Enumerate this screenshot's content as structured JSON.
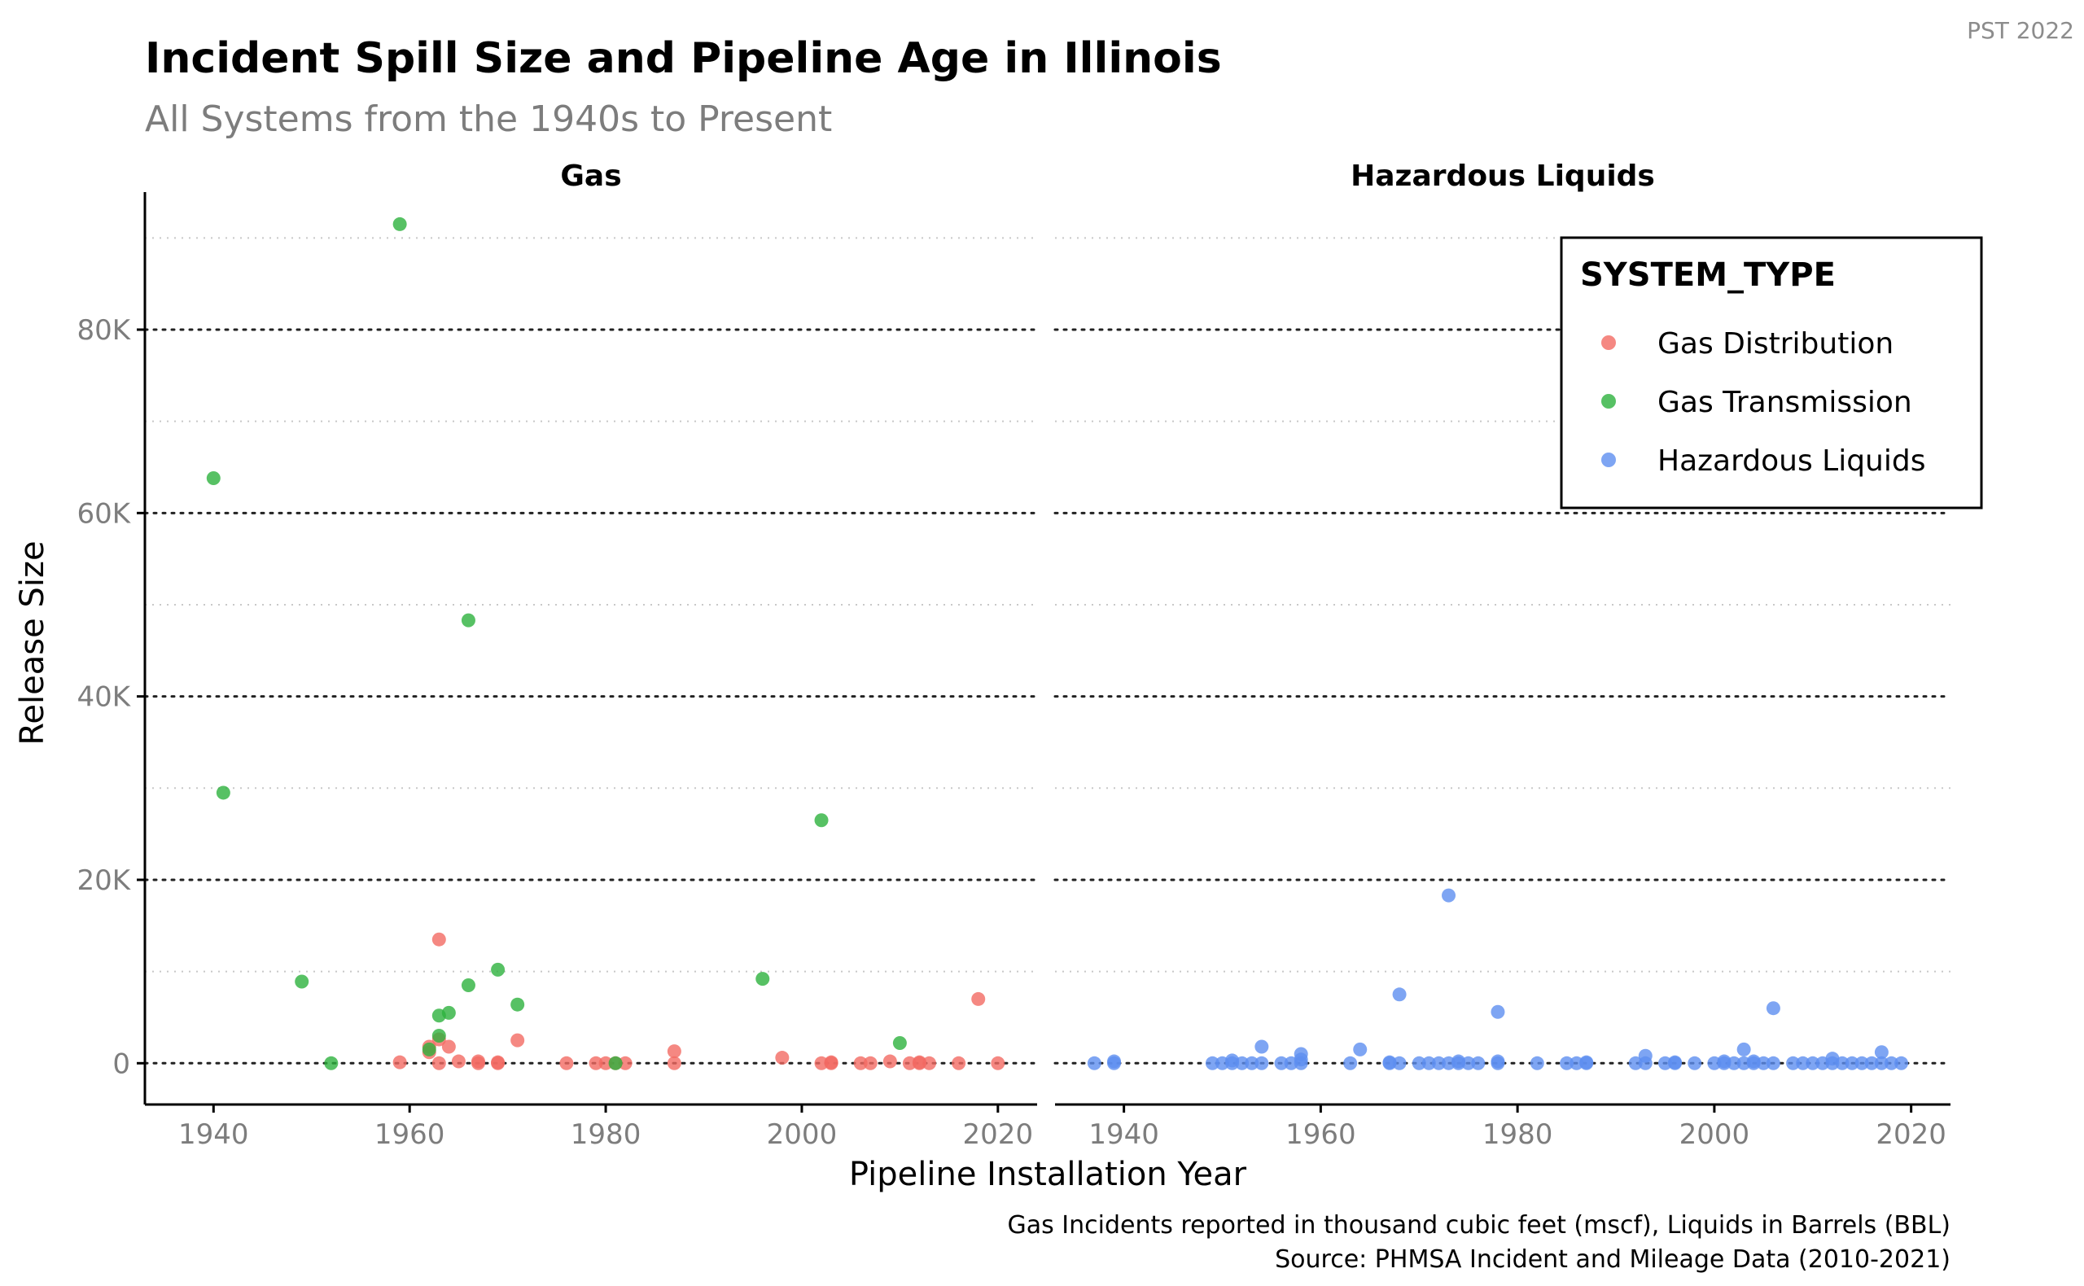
{
  "title": "Incident Spill Size and Pipeline Age in Illinois",
  "subtitle": "All Systems from the 1940s to Present",
  "tag": "PST 2022",
  "caption": [
    "Gas Incidents reported in thousand cubic feet (mscf), Liquids in Barrels (BBL)",
    "Source: PHMSA Incident and Mileage Data (2010-2021)"
  ],
  "colors": {
    "Gas Distribution": "#F26A63",
    "Gas Transmission": "#2DB23D",
    "Hazardous Liquids": "#5E8EF0"
  },
  "chart_data": {
    "type": "scatter",
    "title": "Incident Spill Size and Pipeline Age in Illinois",
    "subtitle": "All Systems from the 1940s to Present",
    "xlabel": "Pipeline Installation Year",
    "ylabel": "Release Size",
    "xlim": [
      1933,
      2024
    ],
    "ylim": [
      -4500,
      95000
    ],
    "x_ticks": [
      1940,
      1960,
      1980,
      2000,
      2020
    ],
    "x_tick_labels": [
      "1940",
      "1960",
      "1980",
      "2000",
      "2020"
    ],
    "y_ticks": [
      0,
      20000,
      40000,
      60000,
      80000
    ],
    "y_tick_labels": [
      "0",
      "20K",
      "40K",
      "60K",
      "80K"
    ],
    "grid": "horizontal dotted",
    "legend": {
      "title": "SYSTEM_TYPE",
      "placement": "top-right",
      "entries": [
        "Gas Distribution",
        "Gas Transmission",
        "Hazardous Liquids"
      ]
    },
    "facets": [
      {
        "label": "Gas",
        "series": [
          {
            "name": "Gas Distribution",
            "points": [
              [
                1959,
                100
              ],
              [
                1962,
                1800
              ],
              [
                1962,
                1200
              ],
              [
                1963,
                13500
              ],
              [
                1963,
                2600
              ],
              [
                1963,
                0
              ],
              [
                1964,
                1800
              ],
              [
                1965,
                200
              ],
              [
                1967,
                0
              ],
              [
                1967,
                200
              ],
              [
                1969,
                0
              ],
              [
                1969,
                100
              ],
              [
                1971,
                2500
              ],
              [
                1976,
                0
              ],
              [
                1979,
                0
              ],
              [
                1980,
                0
              ],
              [
                1981,
                0
              ],
              [
                1982,
                0
              ],
              [
                1987,
                0
              ],
              [
                1987,
                1300
              ],
              [
                1998,
                600
              ],
              [
                2002,
                0
              ],
              [
                2003,
                0
              ],
              [
                2003,
                100
              ],
              [
                2006,
                0
              ],
              [
                2007,
                0
              ],
              [
                2009,
                200
              ],
              [
                2011,
                0
              ],
              [
                2012,
                0
              ],
              [
                2012,
                100
              ],
              [
                2013,
                0
              ],
              [
                2016,
                0
              ],
              [
                2018,
                7000
              ],
              [
                2020,
                0
              ]
            ]
          },
          {
            "name": "Gas Transmission",
            "points": [
              [
                1940,
                63800
              ],
              [
                1941,
                29500
              ],
              [
                1949,
                8900
              ],
              [
                1952,
                0
              ],
              [
                1959,
                91500
              ],
              [
                1962,
                1500
              ],
              [
                1963,
                5200
              ],
              [
                1963,
                3000
              ],
              [
                1964,
                5500
              ],
              [
                1966,
                8500
              ],
              [
                1966,
                48300
              ],
              [
                1969,
                10200
              ],
              [
                1971,
                6400
              ],
              [
                1981,
                0
              ],
              [
                1996,
                9200
              ],
              [
                2002,
                26500
              ],
              [
                2010,
                2200
              ]
            ]
          }
        ]
      },
      {
        "label": "Hazardous Liquids",
        "series": [
          {
            "name": "Hazardous Liquids",
            "points": [
              [
                1937,
                0
              ],
              [
                1939,
                0
              ],
              [
                1939,
                200
              ],
              [
                1949,
                0
              ],
              [
                1950,
                0
              ],
              [
                1951,
                0
              ],
              [
                1951,
                300
              ],
              [
                1952,
                0
              ],
              [
                1953,
                0
              ],
              [
                1954,
                0
              ],
              [
                1954,
                1800
              ],
              [
                1956,
                0
              ],
              [
                1957,
                0
              ],
              [
                1958,
                0
              ],
              [
                1958,
                400
              ],
              [
                1958,
                1000
              ],
              [
                1963,
                0
              ],
              [
                1964,
                1500
              ],
              [
                1967,
                0
              ],
              [
                1967,
                100
              ],
              [
                1968,
                0
              ],
              [
                1968,
                7500
              ],
              [
                1970,
                0
              ],
              [
                1971,
                0
              ],
              [
                1972,
                0
              ],
              [
                1973,
                0
              ],
              [
                1973,
                18300
              ],
              [
                1974,
                0
              ],
              [
                1974,
                200
              ],
              [
                1975,
                0
              ],
              [
                1976,
                0
              ],
              [
                1978,
                0
              ],
              [
                1978,
                200
              ],
              [
                1978,
                5600
              ],
              [
                1982,
                0
              ],
              [
                1985,
                0
              ],
              [
                1986,
                0
              ],
              [
                1987,
                0
              ],
              [
                1987,
                100
              ],
              [
                1992,
                0
              ],
              [
                1993,
                0
              ],
              [
                1993,
                800
              ],
              [
                1995,
                0
              ],
              [
                1996,
                0
              ],
              [
                1996,
                100
              ],
              [
                1998,
                0
              ],
              [
                2000,
                0
              ],
              [
                2001,
                0
              ],
              [
                2001,
                200
              ],
              [
                2002,
                0
              ],
              [
                2003,
                0
              ],
              [
                2003,
                1500
              ],
              [
                2004,
                0
              ],
              [
                2004,
                200
              ],
              [
                2005,
                0
              ],
              [
                2006,
                0
              ],
              [
                2006,
                6000
              ],
              [
                2008,
                0
              ],
              [
                2009,
                0
              ],
              [
                2010,
                0
              ],
              [
                2011,
                0
              ],
              [
                2012,
                0
              ],
              [
                2012,
                500
              ],
              [
                2013,
                0
              ],
              [
                2014,
                0
              ],
              [
                2015,
                0
              ],
              [
                2016,
                0
              ],
              [
                2017,
                0
              ],
              [
                2017,
                1200
              ],
              [
                2018,
                0
              ],
              [
                2019,
                0
              ]
            ]
          }
        ]
      }
    ]
  }
}
